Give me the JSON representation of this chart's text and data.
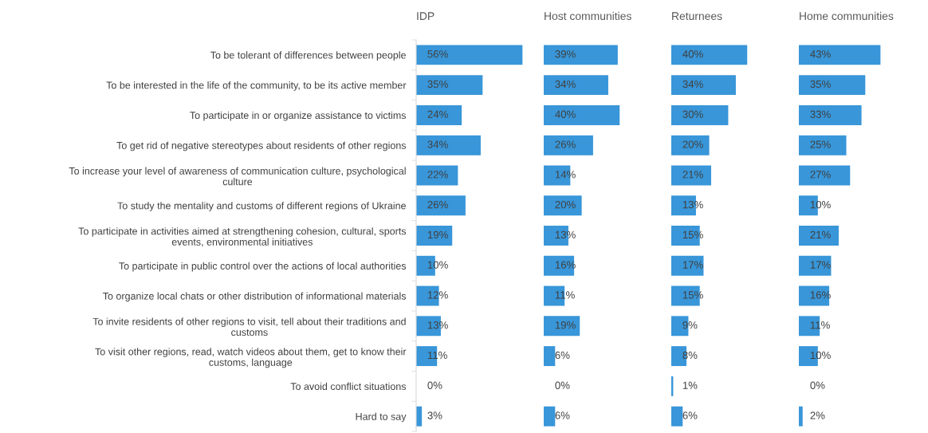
{
  "chart_data": [
    {
      "type": "bar",
      "orientation": "horizontal",
      "title": "IDP",
      "tick_labels": "y",
      "color": "#3896d9",
      "categories": [
        "To be tolerant of differences between people",
        "To be interested in the life of the community, to be its active member",
        "To participate in or organize assistance to victims",
        "To get rid of negative stereotypes about residents of other regions",
        "To increase your level of awareness of communication culture, psychological\nculture",
        "To study the mentality and customs of different regions of Ukraine",
        "To participate in activities aimed at strengthening cohesion, cultural, sports\nevents, environmental initiatives",
        "To participate in public control over the actions of local authorities",
        "To organize local chats or other distribution of informational materials",
        "To invite residents of other regions to visit, tell about their traditions and\ncustoms",
        "To visit other regions, read, watch videos about them, get to know their\ncustoms, language",
        "To avoid conflict situations",
        "Hard to say"
      ],
      "values": [
        56,
        35,
        24,
        34,
        22,
        26,
        19,
        10,
        12,
        13,
        11,
        0,
        3
      ],
      "value_labels": [
        "56%",
        "35%",
        "24%",
        "34%",
        "22%",
        "26%",
        "19%",
        "10%",
        "12%",
        "13%",
        "11%",
        "0%",
        "3%"
      ]
    },
    {
      "type": "bar",
      "orientation": "horizontal",
      "title": "Host communities",
      "tick_labels": false,
      "color": "#3896d9",
      "categories": [
        null,
        null,
        null,
        null,
        null,
        null,
        null,
        null,
        null,
        null,
        null,
        null,
        null
      ],
      "values": [
        39,
        34,
        40,
        26,
        14,
        20,
        13,
        16,
        11,
        19,
        6,
        0,
        6
      ],
      "value_labels": [
        "39%",
        "34%",
        "40%",
        "26%",
        "14%",
        "20%",
        "13%",
        "16%",
        "11%",
        "19%",
        "6%",
        "0%",
        "6%"
      ]
    },
    {
      "type": "bar",
      "orientation": "horizontal",
      "title": "Returnees",
      "tick_labels": false,
      "color": "#3896d9",
      "categories": [
        null,
        null,
        null,
        null,
        null,
        null,
        null,
        null,
        null,
        null,
        null,
        null,
        null
      ],
      "values": [
        40,
        34,
        30,
        20,
        21,
        13,
        15,
        17,
        15,
        9,
        8,
        1,
        6
      ],
      "value_labels": [
        "40%",
        "34%",
        "30%",
        "20%",
        "21%",
        "13%",
        "15%",
        "17%",
        "15%",
        "9%",
        "8%",
        "1%",
        "6%"
      ]
    },
    {
      "type": "bar",
      "orientation": "horizontal",
      "title": "Home communities",
      "tick_labels": false,
      "color": "#3896d9",
      "categories": [
        null,
        null,
        null,
        null,
        null,
        null,
        null,
        null,
        null,
        null,
        null,
        null,
        null
      ],
      "values": [
        43,
        35,
        33,
        25,
        27,
        10,
        21,
        17,
        16,
        11,
        10,
        0,
        2
      ],
      "value_labels": [
        "43%",
        "35%",
        "33%",
        "25%",
        "27%",
        "10%",
        "21%",
        "17%",
        "16%",
        "11%",
        "10%",
        "0%",
        "2%"
      ]
    }
  ]
}
